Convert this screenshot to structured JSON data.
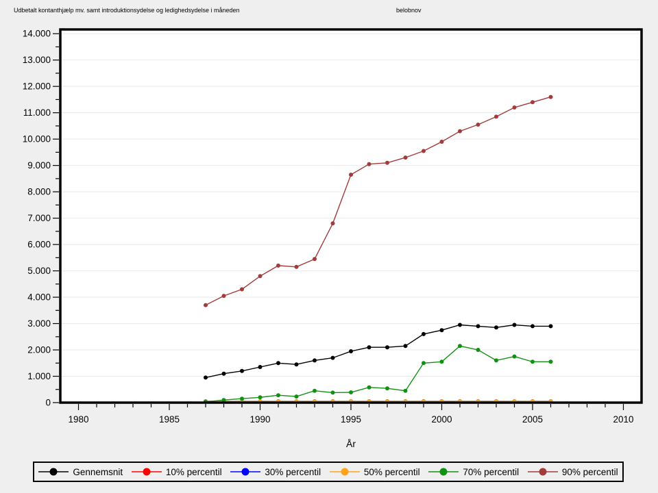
{
  "header": {
    "title_left": "Udbetalt kontanthjælp mv. samt introduktionsydelse og ledighedsydelse i måneden",
    "title_right": "belobnov"
  },
  "chart_data": {
    "type": "line",
    "title": "Udbetalt kontanthjælp mv. samt introduktionsydelse og ledighedsydelse i måneden",
    "variable_label": "belobnov",
    "xlabel": "År",
    "ylabel": "",
    "grid": "horizontal",
    "legend_position": "bottom",
    "x": [
      1987,
      1988,
      1989,
      1990,
      1991,
      1992,
      1993,
      1994,
      1995,
      1996,
      1997,
      1998,
      1999,
      2000,
      2001,
      2002,
      2003,
      2004,
      2005,
      2006
    ],
    "x_axis": {
      "min": 1979,
      "max": 2011,
      "major_ticks": [
        1980,
        1985,
        1990,
        1995,
        2000,
        2005,
        2010
      ],
      "tick_labels": [
        "1980",
        "1985",
        "1990",
        "1995",
        "2000",
        "2005",
        "2010"
      ],
      "minor_tick_every": 1
    },
    "y_axis": {
      "min": 0,
      "max": 14000,
      "major_tick_step": 1000,
      "minor_tick_step": 500,
      "tick_labels": [
        "0",
        "1.000",
        "2.000",
        "3.000",
        "4.000",
        "5.000",
        "6.000",
        "7.000",
        "8.000",
        "9.000",
        "10.000",
        "11.000",
        "12.000",
        "13.000",
        "14.000"
      ]
    },
    "series": [
      {
        "name": "Gennemsnit",
        "color": "#000000",
        "values": [
          950,
          1100,
          1200,
          1350,
          1500,
          1450,
          1600,
          1700,
          1950,
          2100,
          2100,
          2150,
          2600,
          2750,
          2950,
          2900,
          2850,
          2950,
          2900,
          2900
        ]
      },
      {
        "name": "10% percentil",
        "color": "#ff0000",
        "values": [
          50,
          50,
          50,
          50,
          50,
          50,
          50,
          50,
          50,
          50,
          50,
          50,
          50,
          50,
          50,
          50,
          50,
          50,
          50,
          50
        ]
      },
      {
        "name": "30% percentil",
        "color": "#0000ff",
        "values": [
          50,
          50,
          50,
          50,
          50,
          50,
          50,
          50,
          50,
          50,
          50,
          50,
          50,
          50,
          50,
          50,
          50,
          50,
          50,
          50
        ]
      },
      {
        "name": "50% percentil",
        "color": "#ffa319",
        "values": [
          50,
          50,
          50,
          50,
          50,
          50,
          50,
          50,
          50,
          50,
          50,
          50,
          50,
          50,
          50,
          50,
          50,
          50,
          50,
          50
        ]
      },
      {
        "name": "70% percentil",
        "color": "#119111",
        "values": [
          30,
          100,
          150,
          200,
          280,
          230,
          450,
          380,
          390,
          580,
          540,
          450,
          1500,
          1550,
          2150,
          2000,
          1600,
          1750,
          1550,
          1550
        ]
      },
      {
        "name": "90% percentil",
        "color": "#a33b3b",
        "values": [
          3700,
          4050,
          4300,
          4800,
          5200,
          5150,
          5450,
          6800,
          8650,
          9050,
          9100,
          9300,
          9550,
          9900,
          10300,
          10550,
          10850,
          11200,
          11400,
          11600
        ]
      }
    ]
  }
}
